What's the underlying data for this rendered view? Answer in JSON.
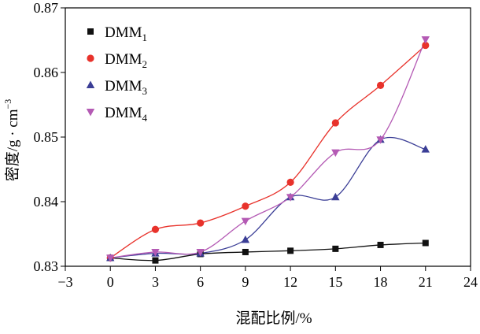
{
  "chart_data": {
    "type": "line",
    "xlabel": "混配比例/%",
    "ylabel": "密度/g · cm",
    "ylabel_sup": "−3",
    "xlim": [
      -3,
      24
    ],
    "ylim": [
      0.83,
      0.87
    ],
    "xticks": [
      -3,
      0,
      3,
      6,
      9,
      12,
      15,
      18,
      21,
      24
    ],
    "xtick_labels": [
      "−3",
      "0",
      "3",
      "6",
      "9",
      "12",
      "15",
      "18",
      "21",
      "24"
    ],
    "yticks": [
      0.83,
      0.84,
      0.85,
      0.86,
      0.87
    ],
    "ytick_labels": [
      "0.83",
      "0.84",
      "0.85",
      "0.86",
      "0.87"
    ],
    "grid": false,
    "legend_position": "top-left",
    "x": [
      0,
      3,
      6,
      9,
      12,
      15,
      18,
      21
    ],
    "series": [
      {
        "name": "DMM",
        "subscript": "1",
        "color": "#111111",
        "marker": "square",
        "values": [
          0.8313,
          0.8309,
          0.8319,
          0.8322,
          0.8324,
          0.8327,
          0.8333,
          0.8336
        ]
      },
      {
        "name": "DMM",
        "subscript": "2",
        "color": "#e8322b",
        "marker": "circle",
        "values": [
          0.8313,
          0.8357,
          0.8367,
          0.8393,
          0.843,
          0.8522,
          0.858,
          0.8642
        ]
      },
      {
        "name": "DMM",
        "subscript": "3",
        "color": "#3b3e96",
        "marker": "triangle-up",
        "values": [
          0.8313,
          0.832,
          0.832,
          0.8341,
          0.8407,
          0.8407,
          0.8496,
          0.8481
        ]
      },
      {
        "name": "DMM",
        "subscript": "4",
        "color": "#b45ab4",
        "marker": "triangle-down",
        "values": [
          0.8313,
          0.8322,
          0.8322,
          0.837,
          0.8407,
          0.8476,
          0.8496,
          0.8651
        ]
      }
    ]
  }
}
